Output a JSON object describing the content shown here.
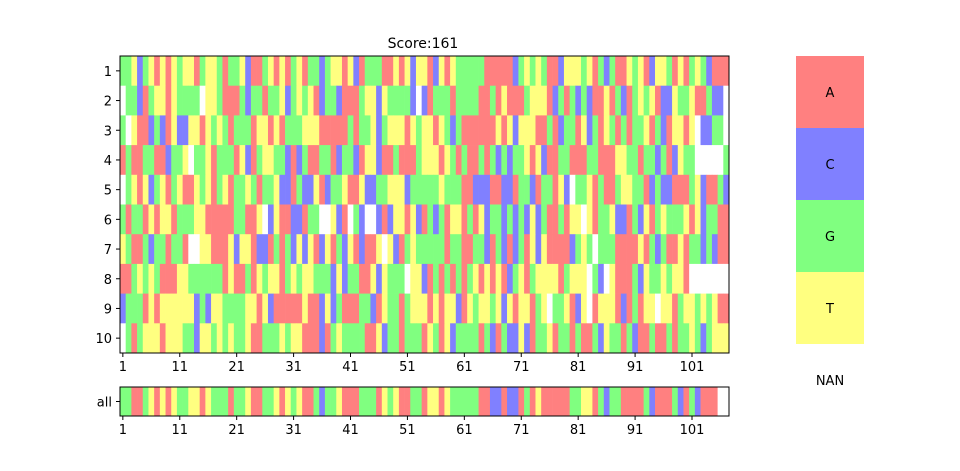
{
  "chart_data": {
    "type": "heatmap",
    "title": "Score:161",
    "row_labels": [
      "1",
      "2",
      "3",
      "4",
      "5",
      "6",
      "7",
      "8",
      "9",
      "10"
    ],
    "consensus_label": "all",
    "x_ticks": [
      "1",
      "11",
      "21",
      "31",
      "41",
      "51",
      "61",
      "71",
      "81",
      "91",
      "101"
    ],
    "n_positions": 107,
    "legend": [
      "A",
      "C",
      "G",
      "T",
      "NAN"
    ],
    "colors": {
      "A": "#ff8080",
      "C": "#8080ff",
      "G": "#80ff80",
      "T": "#ffff80",
      "N": "#ffffff"
    },
    "rows": [
      "GGTCGTATATGTTAGTTGAGGTCAAGTATAGTAGGCGTTATCAGGGAATATCTTACTATGGGGGAAAAACGTGTGAACTTTGTAGCGAATGTACTTGATAGTGCAAA",
      "NGGCAGTTATGGGGNTTGAAAGCGGAGGTCGTGTACGGCAAAGTTCTGGGGCNCAGGGAGGGGAAGATAAAGTTTACGAGCGCAATAGCAGTGTACCTGGTAAGCC",
      "GNTAACGCATCCTTATGTGAGGGATTATAGGGTTTAAAAAGAGGTCGTTTATGTTATGCGAAAAAATATCTTTAAGACGGATCGATGAGAGGTAGCATTATNCCGG",
      "AGAAGGAACGGTNGGTAGGGATCAGTTGGCACGAAGGACGGCATTCAAGAAAGTTTATGAGAAGAGCGCGGTATCAAGGAAAGGAAATTGGAGGCGACTGGNNNNNG",
      "NGTATCGTAGTAATGTAGTAGGTGAGGTCCAGCCTACGGTAATCCGGTTTCGGGGGTGGGAACCCAACCAGGCAGGATCNGGTAGAAGTTGGACGCCAAAGTCAAGC",
      "GAGGATATTAGGGTTAAAAAGGAATNCTAACCAGGNNTCANGCNNCACTTATCAGCGATTAGATCGGCGCGCTCGAAGATTNTAGGTCCAGCTAGTGGGTATCGGAA",
      "TGAAGCGGAGGANNTTAAATCTTACCAGAGCTCTACTAGCTACAATNTCAGTGGGGGAGGAAGGCAGCACGATCTAAAACGTGNGGGAAAATAGCGAATAGGCGCAA",
      "AAGTGTGAAATTGGGGGGATAAGATGTTAGTGTTGGGCTCGGAATCTGGGNTTCAGAGAGAGTATATACGTAGTTTTAGTTTNGCNTAAAGCTGGTGTTANNNNNNN",
      "CGGGATATTTTTTCGCTTGGGGTTATCAAAAATAACTCGAAAGGCATGGAGTTTATATTCATGTTGTCTATTAGTNGGTACTNATTTACAGATTNTTAGTTGTGTAA",
      "NGAGTTTATTTGGCTTGTGTGGTAAGGGTGTTAAACAGTGGGGAATCGGAGGGATGATCGGGGAGCAGCCTCAGGTAGGAGAAGCTGGAGCAAGAAGAGGTGCGTTT"
    ],
    "consensus": "GGAAGTATATGGTTATGGGAGGTAAGGTATGTAAGCGGTAAAGGGATGTAAGGATTATGGGGGAACCACCAGATAAAAAGGTTAGCGGAAAAGCAAAGCAGCAAAN"
  }
}
